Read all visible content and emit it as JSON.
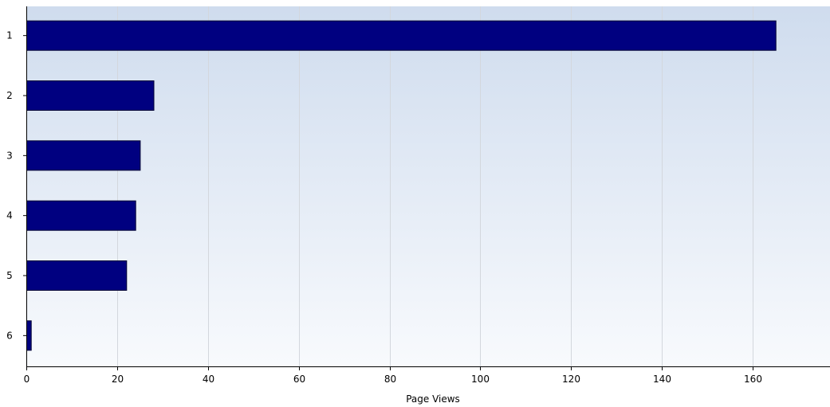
{
  "chart_data": {
    "type": "bar",
    "orientation": "horizontal",
    "categories": [
      "1",
      "2",
      "3",
      "4",
      "5",
      "6"
    ],
    "values": [
      165,
      28,
      25,
      24,
      22,
      1
    ],
    "xlabel": "Page Views",
    "ylabel": "",
    "xlim": [
      0,
      177
    ],
    "xticks": [
      0,
      20,
      40,
      60,
      80,
      100,
      120,
      140,
      160
    ],
    "grid": "vertical",
    "legend": "none",
    "bar_color": "#000080",
    "bar_edge_color": "#000033",
    "background_gradient": [
      "#cfdcee",
      "#f8fafd"
    ],
    "grid_color": "#d3d7dd"
  }
}
